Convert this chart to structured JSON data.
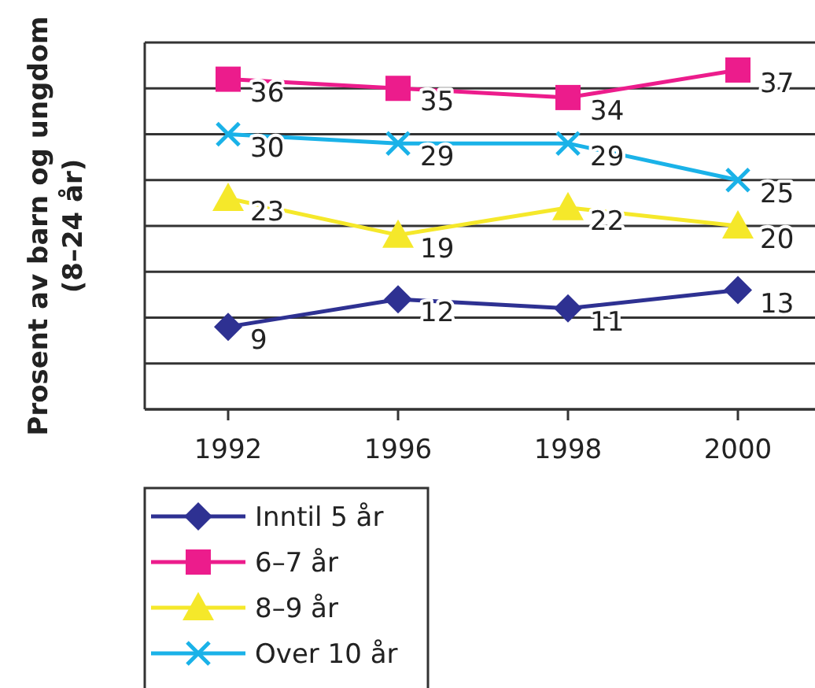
{
  "chart_data": {
    "type": "line",
    "ylabel": "Prosent av barn og ungdom\n(8–24 år)",
    "categories": [
      "1992",
      "1996",
      "1998",
      "2000"
    ],
    "ylim": [
      0,
      40
    ],
    "yticks": [
      {
        "value": 0,
        "label": null
      },
      {
        "value": 5,
        "label": null
      },
      {
        "value": 10,
        "label": null
      },
      {
        "value": 15,
        "label": null
      },
      {
        "value": 20,
        "label": null
      },
      {
        "value": 25,
        "label": null
      },
      {
        "value": 30,
        "label": null
      },
      {
        "value": 35,
        "label": null
      },
      {
        "value": 40,
        "label": null
      }
    ],
    "tick_labels": "x",
    "grid": "y",
    "legend": "bottom left",
    "data_labels": true,
    "line_style": "solid",
    "series": [
      {
        "name": "Inntil 5 år",
        "color": "#2e3192",
        "marker": "diamond",
        "values": [
          9,
          12,
          11,
          13
        ]
      },
      {
        "name": "6–7 år",
        "color": "#ec1c8c",
        "marker": "square",
        "values": [
          36,
          35,
          34,
          37
        ]
      },
      {
        "name": "8–9 år",
        "color": "#f5e82a",
        "marker": "triangle",
        "values": [
          23,
          19,
          22,
          20
        ]
      },
      {
        "name": "Over 10 år",
        "color": "#1ab2e8",
        "marker": "cross",
        "values": [
          30,
          29,
          29,
          25
        ]
      }
    ]
  }
}
